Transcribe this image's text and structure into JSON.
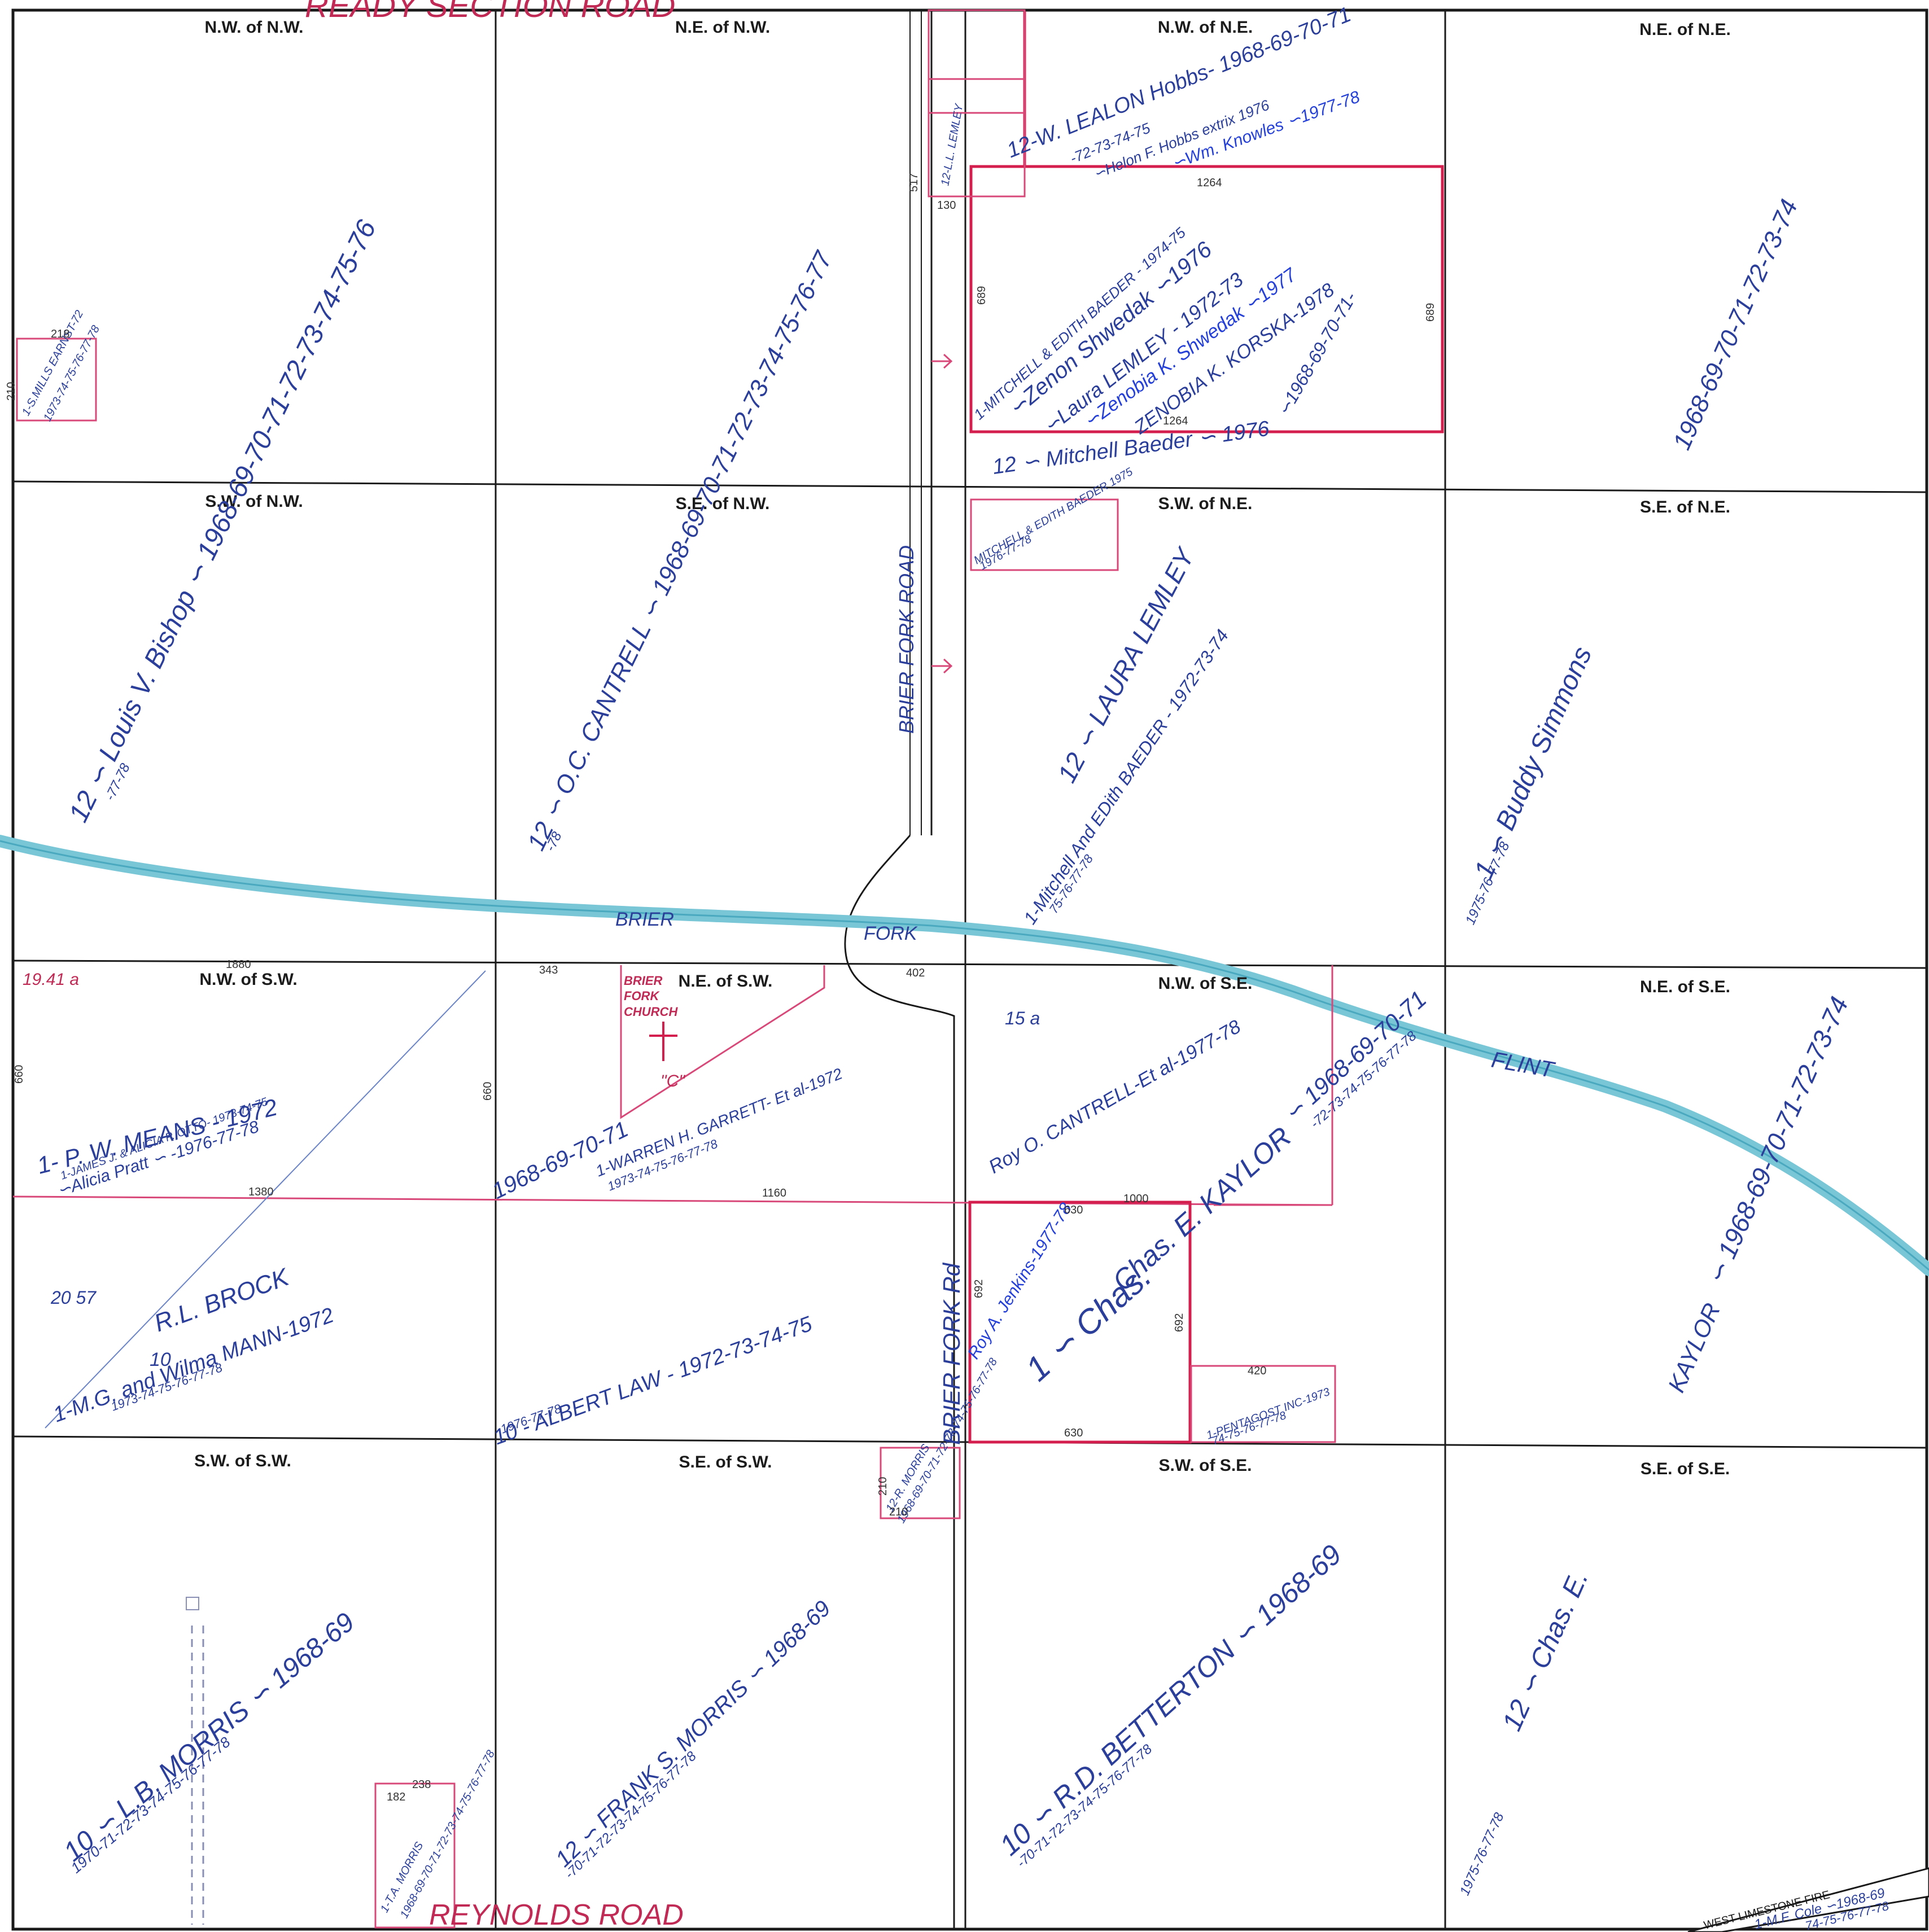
{
  "roads": {
    "top": "READY SECTION ROAD",
    "bottom": "REYNOLDS ROAD",
    "brier_fork_road": "BRIER FORK ROAD",
    "brier_fork_rd": "BRIER FORK Rd"
  },
  "creek": {
    "part1": "BRIER",
    "part2": "FORK",
    "part3": "FLINT"
  },
  "church": {
    "line1": "BRIER",
    "line2": "FORK",
    "line3": "CHURCH",
    "mark": "\"C\""
  },
  "corner_stamp": "WEST LIMESTONE FIRE",
  "quarters": {
    "nw_nw": "N.W. of N.W.",
    "ne_nw": "N.E. of N.W.",
    "nw_ne": "N.W. of N.E.",
    "ne_ne": "N.E. of N.E.",
    "sw_nw": "S.W. of N.W.",
    "se_nw": "S.E. of N.W.",
    "sw_ne": "S.W. of N.E.",
    "se_ne": "S.E. of N.E.",
    "nw_sw": "N.W. of S.W.",
    "ne_sw": "N.E. of S.W.",
    "nw_se": "N.W. of S.E.",
    "ne_se": "N.E. of S.E.",
    "sw_sw": "S.W. of S.W.",
    "se_sw": "S.E. of S.W.",
    "sw_se": "S.W. of S.E.",
    "se_se": "S.E. of S.E."
  },
  "owners": {
    "bishop_head": "12 ∽ Louis V. Bishop ∽ 1968-69-70-71-72-73-74-75-76",
    "bishop_years": "-77-78",
    "cantrell_head": "12 ∽ O.C. CANTRELL ∽ 1968-69-70-71-72-73-74-75-76-77",
    "cantrell_years": "-78",
    "hobbs_head": "12-W. LEALON Hobbs- 1968-69-70-71",
    "hobbs_years": "-72-73-74-75",
    "hobbs_extrix": "∽Helon F. Hobbs extrix 1976",
    "knowles": "∽Wm. Knowles ∽1977-78",
    "baeder_top": "1-MITCHELL & EDITH BAEDER - 1974-75",
    "shwedak_zenon": "∽Zenon Shwedak ∽1976",
    "lemley_top": "∽Laura LEMLEY - 1972-73",
    "shwedak_zenobia": "∽Zenobia K. Shwedak ∽1977",
    "korska": "ZENOBIA K. KORSKA-1978",
    "ne_rect_years": "∽1968-69-70-71-",
    "mitchell_baeder": "12 ∽ Mitchell Baeder ∽ 1976",
    "simmons_head": "1968-69-70-71-72-73-74",
    "simmons_name": "1 ∽ Buddy Simmons",
    "simmons_years": "1975-76-77-78",
    "lemley_sw": "12 ∽ LAURA LEMLEY",
    "baeder_sw": "1-Mitchell And EDith BAEDER - 1972-73-74",
    "baeder_sw_years": "75-76-77-78",
    "means": "1- P. W. MEANS - 1972",
    "otto": "1-JAMES J. & ALICIA P. OTTO- 1973-74-75",
    "pratt": "∽Alicia Pratt ∽ -1976-77-78",
    "garrett": "1-WARREN H. GARRETT- Et al-1972",
    "garrett_years": "1973-74-75-76-77-78",
    "year_span_mid": "1968-69-70-71",
    "cantrell_roy": "Roy O. CANTRELL-Et al-1977-78",
    "kaylor_mid": "∽ 1968-69-70-71",
    "kaylor_mid_years": "-72-73-74-75-76-77-78",
    "kaylor_name": "Chas. E. KAYLOR",
    "kaylor_se_head": "∽ 1968-69-70-71-72-73-74",
    "kaylor_se_name": "KAYLOR",
    "brock": "R.L. BROCK",
    "brock_mann": "1-M.G. and Wilma MANN-1972",
    "brock_years": "1973-74-75-76-77-78",
    "law": "10 - ALBERT LAW - 1972-73-74-75",
    "law_years": "1976-77-78",
    "jenkins": "Roy A. Jenkins-1977-78",
    "jenkins_chas": "1 ∽ Chas.",
    "pentagost": "1-PENTAGOST INC-1973",
    "pentagost_years": "74-75-76-77-78",
    "mills_small": "1-S.MILLS EARNST-72",
    "mills_small_years": "1973-74-75-76-77-78",
    "lemley_small": "12-L.L. LEMLEY",
    "baeder_small": "MITCHELL & EDITH BAEDER 1975",
    "baeder_small_years": "1976-77-78",
    "morris_lb": "10 ∽ L.B. MORRIS ∽ 1968-69",
    "morris_lb_years": "1970-71-72-73-74-75-76-77-78",
    "morris_frank": "12 ∽ FRANK S. MORRIS ∽ 1968-69",
    "morris_frank_years": "-70-71-72-73-74-75-76-77-78",
    "morris_r": "12-R. MORRIS",
    "morris_r_years": "1968-69-70-71-72-73-74-75-76-77-78",
    "betterton": "10 ∽ R.D. BETTERTON ∽ 1968-69",
    "betterton_years": "-70-71-72-73-74-75-76-77-78",
    "kaylor_sese": "12 ∽ Chas. E.",
    "kaylor_sese_years": "1975-76-77-78",
    "morris_ta": "1-T.A. MORRIS",
    "morris_ta_years": "1968-69-70-71-72-73-74-75-76-77-78",
    "cole": "1-M.F. Cole ∽1968-69",
    "cole_years": "74-75-76-77-78"
  },
  "acreage": {
    "nw_sw_a": "19.41 a",
    "ne_sw_a": "15 a",
    "brock_a": "20 57",
    "brock_num": "10"
  },
  "dims": {
    "d1264_top": "1264",
    "d1264_bot": "1264",
    "d689_l": "689",
    "d689_r": "689",
    "d1880": "1880",
    "d343": "343",
    "d402": "402",
    "d660a": "660",
    "d660b": "660",
    "d1380": "1380",
    "d1160": "1160",
    "d630_top": "630",
    "d630_bot": "630",
    "d692_l": "692",
    "d692_r": "692",
    "d1000": "1000",
    "d420": "420",
    "d182": "182",
    "d238": "238",
    "d210a": "210",
    "d210b": "210",
    "d130": "130",
    "d517": "517",
    "d218": "218",
    "d210c": "210"
  }
}
